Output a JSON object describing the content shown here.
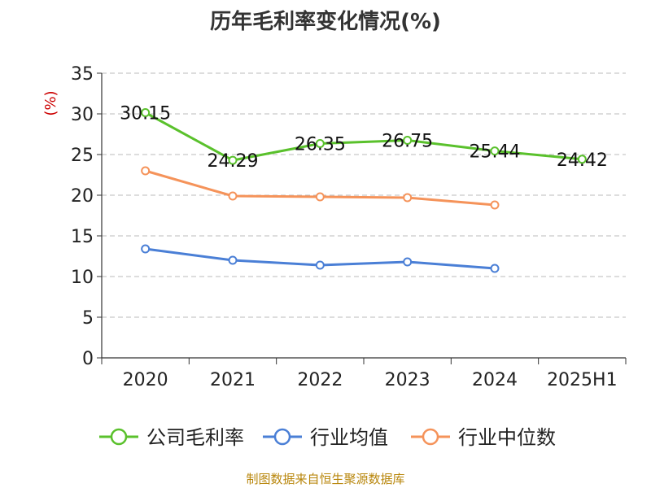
{
  "title": "历年毛利率变化情况(%)",
  "source": "制图数据来自恒生聚源数据库",
  "chart_data": {
    "type": "line",
    "unit": "(%)",
    "categories": [
      "2020",
      "2021",
      "2022",
      "2023",
      "2024",
      "2025H1"
    ],
    "ylim": [
      0,
      35
    ],
    "yticks": [
      "0",
      "5",
      "10",
      "15",
      "20",
      "25",
      "30",
      "35"
    ],
    "grid": true,
    "legend_position": "bottom",
    "series": [
      {
        "name": "公司毛利率",
        "color": "#5ac12c",
        "values": [
          30.15,
          24.29,
          26.35,
          26.75,
          25.44,
          24.42
        ],
        "labels": [
          "30.15",
          "24.29",
          "26.35",
          "26.75",
          "25.44",
          "24.42"
        ]
      },
      {
        "name": "行业均值",
        "color": "#4a7fd6",
        "values": [
          13.4,
          12.0,
          11.4,
          11.8,
          11.0,
          null
        ]
      },
      {
        "name": "行业中位数",
        "color": "#f5935a",
        "values": [
          23.0,
          19.9,
          19.8,
          19.7,
          18.8,
          null
        ]
      }
    ]
  }
}
